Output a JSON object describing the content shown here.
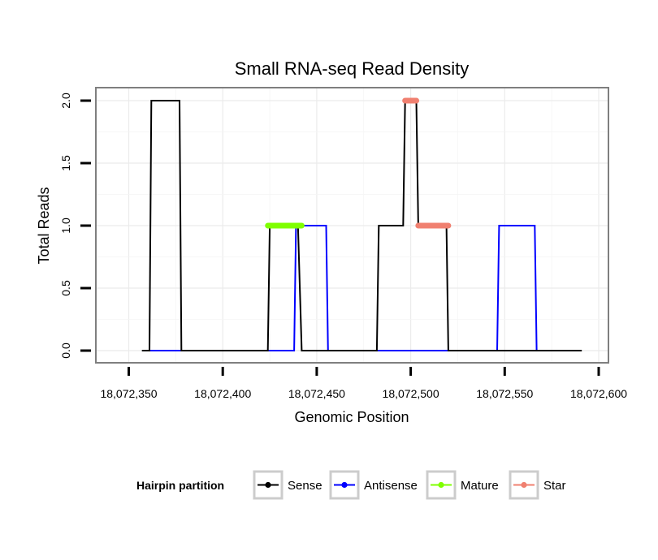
{
  "chart_data": {
    "type": "line",
    "title": "Small RNA-seq Read Density",
    "xlabel": "Genomic Position",
    "ylabel": "Total Reads",
    "xlim": [
      18072344,
      18072594
    ],
    "ylim": [
      0,
      2
    ],
    "x_ticks": [
      {
        "value": 18072350,
        "label": "18,072,350"
      },
      {
        "value": 18072400,
        "label": "18,072,400"
      },
      {
        "value": 18072450,
        "label": "18,072,450"
      },
      {
        "value": 18072500,
        "label": "18,072,500"
      },
      {
        "value": 18072550,
        "label": "18,072,550"
      },
      {
        "value": 18072600,
        "label": "18,072,600"
      }
    ],
    "y_ticks": [
      {
        "value": 0,
        "label": "0.0"
      },
      {
        "value": 0.5,
        "label": "0.5"
      },
      {
        "value": 1,
        "label": "1.0"
      },
      {
        "value": 1.5,
        "label": "1.5"
      },
      {
        "value": 2,
        "label": "2.0"
      }
    ],
    "grid": true,
    "legend_title": "Hairpin partition",
    "legend_position": "bottom",
    "series": [
      {
        "name": "Sense",
        "color": "#000000",
        "kind": "line",
        "points": [
          [
            18072357,
            0
          ],
          [
            18072361,
            0
          ],
          [
            18072362,
            2
          ],
          [
            18072377,
            2
          ],
          [
            18072378,
            0
          ],
          [
            18072424,
            0
          ],
          [
            18072425,
            1
          ],
          [
            18072440,
            1
          ],
          [
            18072442,
            0
          ],
          [
            18072482,
            0
          ],
          [
            18072483,
            1
          ],
          [
            18072496,
            1
          ],
          [
            18072497,
            2
          ],
          [
            18072503,
            2
          ],
          [
            18072504,
            1
          ],
          [
            18072519,
            1
          ],
          [
            18072520,
            0
          ],
          [
            18072591,
            0
          ]
        ]
      },
      {
        "name": "Antisense",
        "color": "#0000ff",
        "kind": "line",
        "points": [
          [
            18072361,
            0
          ],
          [
            18072438,
            0
          ],
          [
            18072439,
            1
          ],
          [
            18072455,
            1
          ],
          [
            18072456,
            0
          ],
          [
            18072546,
            0
          ],
          [
            18072547,
            1
          ],
          [
            18072566,
            1
          ],
          [
            18072567,
            0
          ]
        ]
      },
      {
        "name": "Mature",
        "color": "#7fff00",
        "kind": "segment",
        "points": [
          [
            18072424,
            1
          ],
          [
            18072442,
            1
          ]
        ]
      },
      {
        "name": "Star",
        "color": "#f08070",
        "kind": "segment",
        "segments": [
          [
            [
              18072497,
              2
            ],
            [
              18072503,
              2
            ]
          ],
          [
            [
              18072504,
              1
            ],
            [
              18072520,
              1
            ]
          ]
        ]
      }
    ]
  }
}
